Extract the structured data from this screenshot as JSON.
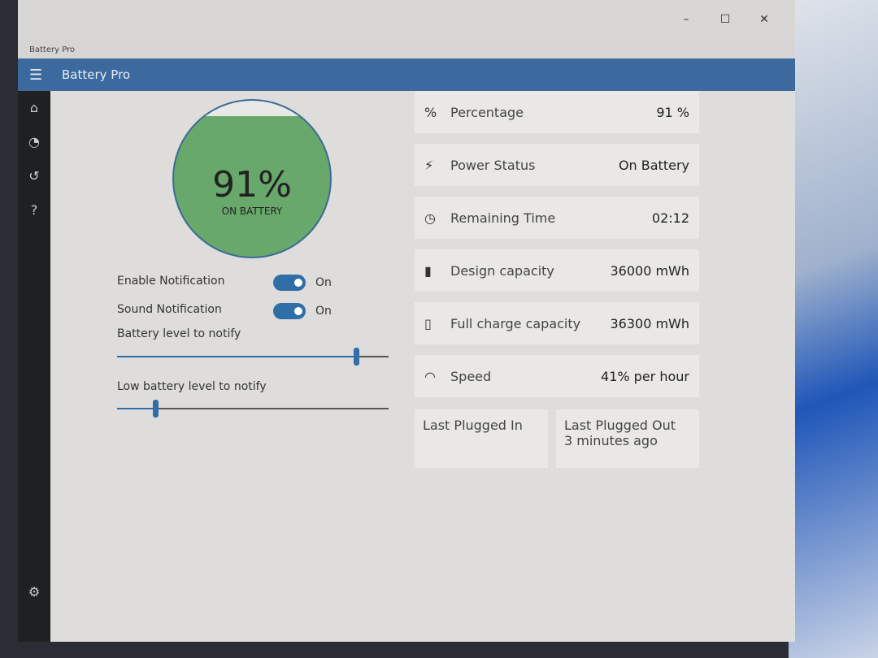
{
  "window": {
    "title": "Battery Pro",
    "controls": [
      "–",
      "☐",
      "✕"
    ]
  },
  "header": {
    "title": "Battery Pro",
    "menu_icon": "hamburger-icon"
  },
  "nav": [
    {
      "icon": "home-icon",
      "glyph": "⌂"
    },
    {
      "icon": "pie-chart-icon",
      "glyph": "◔"
    },
    {
      "icon": "history-icon",
      "glyph": "↺"
    },
    {
      "icon": "help-icon",
      "glyph": "?"
    }
  ],
  "settings_glyph": "⚙",
  "battery": {
    "percent_text": "91%",
    "status": "ON BATTERY",
    "level": 91,
    "color": "#68a86a"
  },
  "settings": {
    "enable_notification": {
      "label": "Enable Notification",
      "state": "On"
    },
    "sound_notification": {
      "label": "Sound Notification",
      "state": "On"
    },
    "battery_level_label": "Battery level to notify",
    "battery_level_value_pct": 88,
    "low_level_label": "Low battery level to notify",
    "low_level_value_pct": 14
  },
  "cards": [
    {
      "icon": "percent-icon",
      "glyph": "%",
      "label": "Percentage",
      "value": "91 %"
    },
    {
      "icon": "plug-icon",
      "glyph": "⚡",
      "label": "Power Status",
      "value": "On Battery"
    },
    {
      "icon": "clock-icon",
      "glyph": "◷",
      "label": "Remaining Time",
      "value": "02:12"
    },
    {
      "icon": "battery-icon",
      "glyph": "▮",
      "label": "Design capacity",
      "value": "36000 mWh"
    },
    {
      "icon": "battery-full-icon",
      "glyph": "▯",
      "label": "Full charge capacity",
      "value": "36300 mWh"
    },
    {
      "icon": "speedometer-icon",
      "glyph": "◠",
      "label": "Speed",
      "value": "41% per hour"
    }
  ],
  "plugged": {
    "in_label": "Last Plugged In",
    "out_label": "Last Plugged Out",
    "out_value": "3 minutes ago"
  },
  "accent": "#2f6ea6"
}
